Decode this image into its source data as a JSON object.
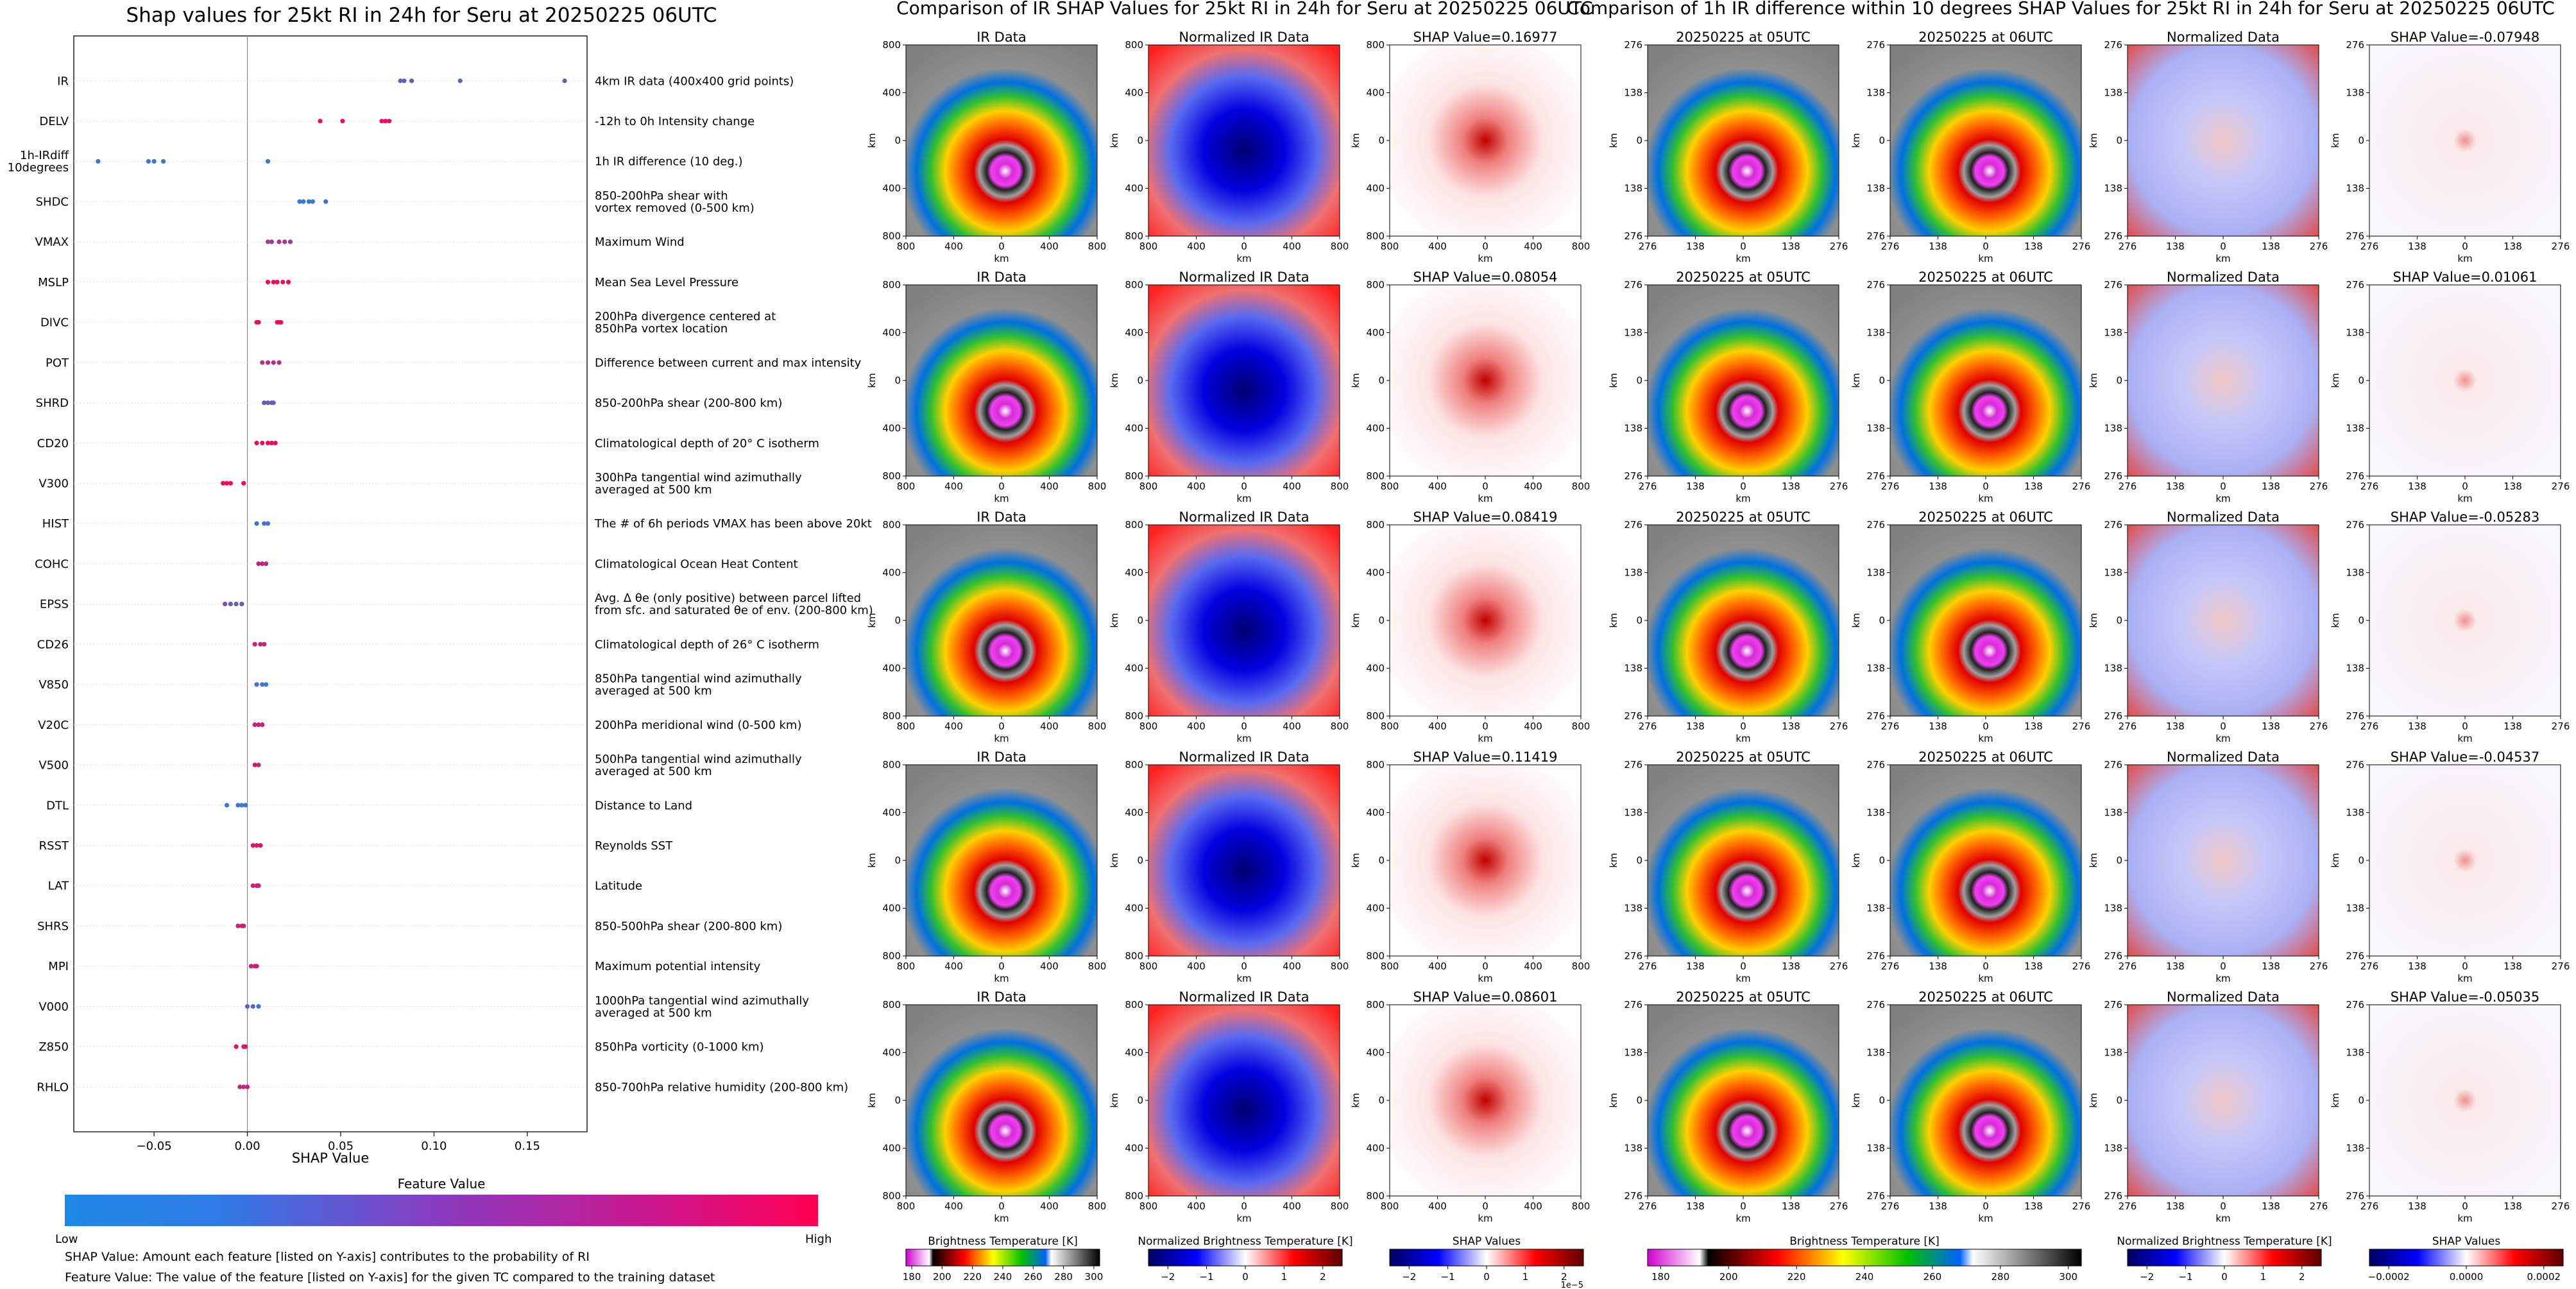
{
  "left_panel": {
    "title": "Shap values for 25kt RI in 24h for Seru at 20250225 06UTC",
    "xlabel": "SHAP Value",
    "colorbar_title": "Feature Value",
    "colorbar_low": "Low",
    "colorbar_high": "High",
    "note1": "SHAP Value: Amount each feature [listed on Y-axis] contributes to the probability of RI",
    "note2": "Feature Value: The value of the feature [listed on Y-axis] for the given TC compared to the training dataset"
  },
  "middle_panel": {
    "title": "Comparison of IR SHAP Values for 25kt RI in 24h for Seru at 20250225 06UTC",
    "col_titles": [
      "IR Data",
      "Normalized IR Data"
    ],
    "shap_titles": [
      "SHAP Value=0.16977",
      "SHAP Value=0.08054",
      "SHAP Value=0.08419",
      "SHAP Value=0.11419",
      "SHAP Value=0.08601"
    ],
    "ticks": [
      "800",
      "400",
      "0",
      "400",
      "800"
    ],
    "axis_unit": "km",
    "colorbars": [
      {
        "label": "Brightness Temperature [K]",
        "ticks": [
          "180",
          "200",
          "220",
          "240",
          "260",
          "280",
          "300"
        ]
      },
      {
        "label": "Normalized Brightness Temperature [K]",
        "ticks": [
          "−2",
          "−1",
          "0",
          "1",
          "2"
        ]
      },
      {
        "label": "SHAP Values",
        "ticks": [
          "−2",
          "−1",
          "0",
          "1",
          "2"
        ],
        "offset": "1e−5"
      }
    ]
  },
  "right_panel": {
    "title": "Comparison of 1h IR difference within 10 degrees SHAP Values for 25kt RI in 24h for Seru at 20250225 06UTC",
    "col_titles": [
      "20250225 at 05UTC",
      "20250225 at 06UTC",
      "Normalized Data"
    ],
    "shap_titles": [
      "SHAP Value=-0.07948",
      "SHAP Value=0.01061",
      "SHAP Value=-0.05283",
      "SHAP Value=-0.04537",
      "SHAP Value=-0.05035"
    ],
    "ticks": [
      "276",
      "138",
      "0",
      "138",
      "276"
    ],
    "axis_unit": "km",
    "colorbars": [
      {
        "label": "Brightness Temperature [K]",
        "ticks": [
          "180",
          "200",
          "220",
          "240",
          "260",
          "280",
          "300"
        ]
      },
      {
        "label": "Normalized Brightness Temperature [K]",
        "ticks": [
          "−2",
          "−1",
          "0",
          "1",
          "2"
        ]
      },
      {
        "label": "SHAP Values",
        "ticks": [
          "−0.0002",
          "0.0000",
          "0.0002"
        ]
      }
    ]
  },
  "chart_data": {
    "type": "scatter",
    "title": "Shap values for 25kt RI in 24h for Seru at 20250225 06UTC",
    "xlabel": "SHAP Value",
    "xlim": [
      -0.093,
      0.182
    ],
    "xticks": [
      "−0.05",
      "0.00",
      "0.05",
      "0.10",
      "0.15"
    ],
    "xtick_values": [
      -0.05,
      0.0,
      0.05,
      0.1,
      0.15
    ],
    "features": [
      {
        "name": "IR",
        "desc": "4km IR data (400x400 grid points)",
        "points": [
          [
            0.082,
            0.3
          ],
          [
            0.084,
            0.25
          ],
          [
            0.088,
            0.35
          ],
          [
            0.114,
            0.25
          ],
          [
            0.17,
            0.3
          ]
        ]
      },
      {
        "name": "DELV",
        "desc": "-12h to 0h Intensity change",
        "points": [
          [
            0.039,
            0.9
          ],
          [
            0.051,
            0.92
          ],
          [
            0.072,
            0.9
          ],
          [
            0.074,
            0.92
          ],
          [
            0.076,
            0.88
          ]
        ]
      },
      {
        "name": "1h-IRdiff\n10degrees",
        "desc": "1h IR difference (10 deg.)",
        "points": [
          [
            -0.08,
            0.1
          ],
          [
            -0.053,
            0.15
          ],
          [
            -0.05,
            0.12
          ],
          [
            -0.045,
            0.15
          ],
          [
            0.011,
            0.15
          ]
        ]
      },
      {
        "name": "SHDC",
        "desc": "850-200hPa shear with\nvortex removed (0-500 km)",
        "points": [
          [
            0.028,
            0.1
          ],
          [
            0.03,
            0.12
          ],
          [
            0.033,
            0.15
          ],
          [
            0.035,
            0.1
          ],
          [
            0.042,
            0.15
          ]
        ]
      },
      {
        "name": "VMAX",
        "desc": "Maximum Wind",
        "points": [
          [
            0.011,
            0.55
          ],
          [
            0.013,
            0.6
          ],
          [
            0.017,
            0.6
          ],
          [
            0.02,
            0.6
          ],
          [
            0.023,
            0.55
          ]
        ]
      },
      {
        "name": "MSLP",
        "desc": "Mean Sea Level Pressure",
        "points": [
          [
            0.011,
            0.92
          ],
          [
            0.014,
            0.9
          ],
          [
            0.016,
            0.93
          ],
          [
            0.019,
            0.88
          ],
          [
            0.022,
            0.92
          ]
        ]
      },
      {
        "name": "DIVC",
        "desc": "200hPa divergence centered at\n850hPa vortex location",
        "points": [
          [
            0.005,
            0.9
          ],
          [
            0.006,
            0.88
          ],
          [
            0.016,
            0.9
          ],
          [
            0.017,
            0.92
          ],
          [
            0.018,
            0.9
          ]
        ]
      },
      {
        "name": "POT",
        "desc": "Difference between current and max intensity",
        "points": [
          [
            0.008,
            0.65
          ],
          [
            0.011,
            0.7
          ],
          [
            0.014,
            0.65
          ],
          [
            0.017,
            0.7
          ]
        ]
      },
      {
        "name": "SHRD",
        "desc": "850-200hPa shear (200-800 km)",
        "points": [
          [
            0.009,
            0.35
          ],
          [
            0.011,
            0.3
          ],
          [
            0.013,
            0.35
          ],
          [
            0.014,
            0.3
          ]
        ]
      },
      {
        "name": "CD20",
        "desc": "Climatological depth of 20° C isotherm",
        "points": [
          [
            0.005,
            0.92
          ],
          [
            0.008,
            0.92
          ],
          [
            0.011,
            0.9
          ],
          [
            0.013,
            0.95
          ],
          [
            0.015,
            0.92
          ]
        ]
      },
      {
        "name": "V300",
        "desc": "300hPa tangential wind azimuthally\naveraged at 500 km",
        "points": [
          [
            -0.013,
            0.95
          ],
          [
            -0.011,
            0.95
          ],
          [
            -0.009,
            0.92
          ],
          [
            -0.002,
            0.9
          ]
        ]
      },
      {
        "name": "HIST",
        "desc": "The # of 6h periods VMAX has been above 20kt",
        "points": [
          [
            0.005,
            0.2
          ],
          [
            0.009,
            0.2
          ],
          [
            0.011,
            0.15
          ]
        ]
      },
      {
        "name": "COHC",
        "desc": "Climatological Ocean Heat Content",
        "points": [
          [
            0.006,
            0.7
          ],
          [
            0.008,
            0.72
          ],
          [
            0.01,
            0.7
          ]
        ]
      },
      {
        "name": "EPSS",
        "desc": "Avg. Δ θe (only positive) between parcel lifted\nfrom sfc. and saturated θe of env. (200-800 km)",
        "points": [
          [
            -0.012,
            0.4
          ],
          [
            -0.009,
            0.35
          ],
          [
            -0.006,
            0.3
          ],
          [
            -0.003,
            0.35
          ]
        ]
      },
      {
        "name": "CD26",
        "desc": "Climatological depth of 26° C isotherm",
        "points": [
          [
            0.004,
            0.75
          ],
          [
            0.007,
            0.72
          ],
          [
            0.009,
            0.72
          ]
        ]
      },
      {
        "name": "V850",
        "desc": "850hPa tangential wind azimuthally\naveraged at 500 km",
        "points": [
          [
            0.005,
            0.15
          ],
          [
            0.008,
            0.15
          ],
          [
            0.01,
            0.1
          ]
        ]
      },
      {
        "name": "V20C",
        "desc": "200hPa meridional wind (0-500 km)",
        "points": [
          [
            0.004,
            0.7
          ],
          [
            0.006,
            0.75
          ],
          [
            0.008,
            0.72
          ]
        ]
      },
      {
        "name": "V500",
        "desc": "500hPa tangential wind azimuthally\naveraged at 500 km",
        "points": [
          [
            0.004,
            0.8
          ],
          [
            0.006,
            0.78
          ]
        ]
      },
      {
        "name": "DTL",
        "desc": "Distance to Land",
        "points": [
          [
            -0.011,
            0.1
          ],
          [
            -0.005,
            0.15
          ],
          [
            -0.003,
            0.1
          ],
          [
            -0.001,
            0.15
          ]
        ]
      },
      {
        "name": "RSST",
        "desc": "Reynolds SST",
        "points": [
          [
            0.003,
            0.85
          ],
          [
            0.005,
            0.8
          ],
          [
            0.007,
            0.85
          ]
        ]
      },
      {
        "name": "LAT",
        "desc": "Latitude",
        "points": [
          [
            0.003,
            0.75
          ],
          [
            0.005,
            0.72
          ],
          [
            0.006,
            0.75
          ]
        ]
      },
      {
        "name": "SHRS",
        "desc": "850-500hPa shear (200-800 km)",
        "points": [
          [
            -0.005,
            0.75
          ],
          [
            -0.003,
            0.7
          ],
          [
            -0.002,
            0.75
          ]
        ]
      },
      {
        "name": "MPI",
        "desc": "Maximum potential intensity",
        "points": [
          [
            0.002,
            0.75
          ],
          [
            0.004,
            0.72
          ],
          [
            0.005,
            0.75
          ]
        ]
      },
      {
        "name": "V000",
        "desc": "1000hPa tangential wind azimuthally\naveraged at 500 km",
        "points": [
          [
            0.0,
            0.3
          ],
          [
            0.003,
            0.25
          ],
          [
            0.006,
            0.2
          ]
        ]
      },
      {
        "name": "Z850",
        "desc": "850hPa vorticity (0-1000 km)",
        "points": [
          [
            -0.006,
            0.85
          ],
          [
            -0.002,
            0.8
          ],
          [
            -0.001,
            0.85
          ]
        ]
      },
      {
        "name": "RHLO",
        "desc": "850-700hPa relative humidity (200-800 km)",
        "points": [
          [
            -0.004,
            0.75
          ],
          [
            -0.002,
            0.7
          ],
          [
            0.0,
            0.75
          ]
        ]
      }
    ]
  }
}
